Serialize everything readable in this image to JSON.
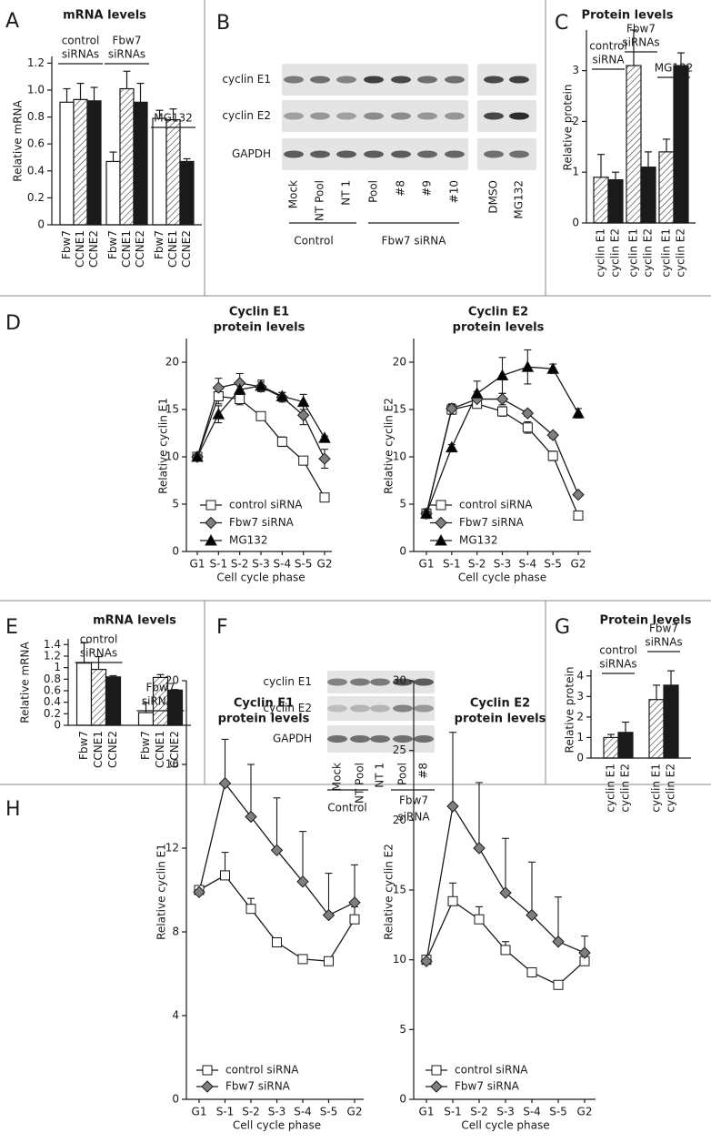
{
  "chart_data": [
    {
      "panel": "A",
      "type": "bar",
      "title": "mRNA levels",
      "ylabel": "Relative mRNA",
      "ylim": [
        0,
        1.25
      ],
      "yticks": [
        0,
        0.2,
        0.4,
        0.6,
        0.8,
        {
          "value": 1,
          "label": "1.0"
        },
        1.2
      ],
      "patterns": [
        "open",
        "hatched",
        "solid"
      ],
      "groups": [
        {
          "label": [
            "control",
            "siRNAs"
          ],
          "categories": [
            "Fbw7",
            "CCNE1",
            "CCNE2"
          ],
          "values": [
            0.91,
            0.93,
            0.92
          ],
          "errors": [
            0.1,
            0.12,
            0.1
          ]
        },
        {
          "label": [
            "Fbw7",
            "siRNAs"
          ],
          "categories": [
            "Fbw7",
            "CCNE1",
            "CCNE2"
          ],
          "values": [
            0.47,
            1.01,
            0.91
          ],
          "errors": [
            0.07,
            0.13,
            0.14
          ]
        },
        {
          "label": [
            "MG132"
          ],
          "categories": [
            "Fbw7",
            "CCNE1",
            "CCNE2"
          ],
          "values": [
            0.79,
            0.78,
            0.47
          ],
          "errors": [
            0.06,
            0.08,
            0.02
          ]
        }
      ]
    },
    {
      "panel": "B",
      "type": "blot",
      "rows": [
        "cyclin E1",
        "cyclin E2",
        "GAPDH"
      ],
      "lanes": [
        "Mock",
        "NT Pool",
        "NT 1",
        "Pool",
        "#8",
        "#9",
        "#10",
        "DMSO",
        "MG132"
      ],
      "group_labels": [
        [
          "Control"
        ],
        [
          "Fbw7 siRNA"
        ]
      ]
    },
    {
      "panel": "C",
      "type": "bar",
      "title": "Protein levels",
      "ylabel": "Relative protein",
      "ylim": [
        0,
        3.8
      ],
      "yticks": [
        0,
        1,
        2,
        3
      ],
      "patterns": [
        "hatched",
        "solid"
      ],
      "groups": [
        {
          "label": [
            "control",
            "siRNA"
          ],
          "categories": [
            "cyclin E1",
            "cyclin E2"
          ],
          "values": [
            0.9,
            0.85
          ],
          "errors": [
            0.45,
            0.15
          ]
        },
        {
          "label": [
            "Fbw7",
            "siRNAs"
          ],
          "categories": [
            "cyclin E1",
            "cyclin E2"
          ],
          "values": [
            3.1,
            1.1
          ],
          "errors": [
            0.7,
            0.3
          ]
        },
        {
          "label": [
            "MG132"
          ],
          "categories": [
            "cyclin E1",
            "cyclin E2"
          ],
          "values": [
            1.4,
            3.1
          ],
          "errors": [
            0.25,
            0.25
          ]
        }
      ]
    },
    {
      "panel": "D",
      "type": "line",
      "title": [
        "Cyclin E1",
        "protein levels"
      ],
      "xlabel": "Cell cycle phase",
      "ylabel": "Relative cyclin E1",
      "categories": [
        "G1",
        "S-1",
        "S-2",
        "S-3",
        "S-4",
        "S-5",
        "G2"
      ],
      "ylim": [
        0,
        22.5
      ],
      "yticks": [
        0,
        5,
        10,
        15,
        20
      ],
      "error_bars": "both",
      "series": [
        {
          "name": "control siRNA",
          "marker": "square",
          "color": "#ffffff",
          "values": [
            10,
            16.4,
            16.1,
            14.3,
            11.6,
            9.6,
            5.7
          ],
          "errors": [
            0,
            0.8,
            0.6,
            0.4,
            0.5,
            0.4,
            0.3
          ]
        },
        {
          "name": "Fbw7 siRNA",
          "marker": "diamond",
          "color": "#7f7f7f",
          "values": [
            10,
            17.3,
            17.8,
            17.4,
            16.3,
            14.4,
            9.8
          ],
          "errors": [
            0,
            1,
            1,
            0.5,
            0.5,
            1,
            1
          ]
        },
        {
          "name": "MG132",
          "marker": "triangle",
          "color": "#000000",
          "values": [
            10,
            14.5,
            17.1,
            17.5,
            16.4,
            15.8,
            12
          ],
          "errors": [
            0,
            0.9,
            0.9,
            0.6,
            0.4,
            0.8,
            0.2
          ]
        }
      ]
    },
    {
      "type": "line",
      "title": [
        "Cyclin E2",
        "protein levels"
      ],
      "xlabel": "Cell cycle phase",
      "ylabel": "Relative cyclin E2",
      "categories": [
        "G1",
        "S-1",
        "S-2",
        "S-3",
        "S-4",
        "S-5",
        "G2"
      ],
      "ylim": [
        0,
        22.5
      ],
      "yticks": [
        0,
        5,
        10,
        15,
        20
      ],
      "error_bars": "both",
      "series": [
        {
          "name": "control siRNA",
          "marker": "square",
          "color": "#ffffff",
          "values": [
            4,
            15,
            15.6,
            14.8,
            13.1,
            10.1,
            3.8
          ],
          "errors": [
            0,
            0.5,
            0.4,
            0.5,
            0.6,
            0.5,
            0.3
          ]
        },
        {
          "name": "Fbw7 siRNA",
          "marker": "diamond",
          "color": "#7f7f7f",
          "values": [
            4,
            15.1,
            16.1,
            16.1,
            14.6,
            12.3,
            6
          ],
          "errors": [
            0.5,
            0.5,
            0.8,
            0.6,
            0.3,
            0.3,
            0.2
          ]
        },
        {
          "name": "MG132",
          "marker": "triangle",
          "color": "#000000",
          "values": [
            4,
            11,
            16.7,
            18.6,
            19.5,
            19.3,
            14.6
          ],
          "errors": [
            0.5,
            0.3,
            1.3,
            1.9,
            1.8,
            0.5,
            0.5
          ]
        }
      ]
    },
    {
      "panel": "E",
      "type": "bar",
      "title": "mRNA levels",
      "ylabel": "Relative mRNA",
      "ylim": [
        0,
        1.5
      ],
      "yticks": [
        0,
        0.2,
        0.4,
        0.6,
        0.8,
        1,
        1.2,
        1.4
      ],
      "patterns": [
        "open",
        "hatched",
        "solid"
      ],
      "groups": [
        {
          "label": [
            "control",
            "siRNAs"
          ],
          "categories": [
            "Fbw7",
            "CCNE1",
            "CCNE2"
          ],
          "values": [
            1.08,
            0.97,
            0.84
          ],
          "errors": [
            0.35,
            0.22,
            0.02
          ]
        },
        {
          "label": [
            "Fbw7",
            "siRNAs"
          ],
          "categories": [
            "Fbw7",
            "CCNE1",
            "CCNE2"
          ],
          "values": [
            0.22,
            0.83,
            0.61
          ],
          "errors": [
            0.17,
            0.05,
            0.01
          ]
        }
      ]
    },
    {
      "panel": "F",
      "type": "blot",
      "rows": [
        "cyclin E1",
        "cyclin E2",
        "GAPDH"
      ],
      "lanes": [
        "Mock",
        "NT Pool",
        "NT 1",
        "Pool",
        "#8"
      ],
      "group_labels": [
        [
          "Control"
        ],
        [
          "Fbw7",
          "siRNA"
        ]
      ]
    },
    {
      "panel": "G",
      "type": "bar",
      "title": "Protein levels",
      "ylabel": "Relative protein",
      "ylim": [
        0,
        4.3
      ],
      "yticks": [
        0,
        1,
        2,
        3,
        4
      ],
      "patterns": [
        "hatched",
        "solid"
      ],
      "groups": [
        {
          "label": [
            "control",
            "siRNAs"
          ],
          "categories": [
            "cyclin E1",
            "cyclin E2"
          ],
          "values": [
            1,
            1.25
          ],
          "errors": [
            0.15,
            0.5
          ]
        },
        {
          "label": [
            "Fbw7",
            "siRNAs"
          ],
          "categories": [
            "cyclin E1",
            "cyclin E2"
          ],
          "values": [
            2.85,
            3.55
          ],
          "errors": [
            0.7,
            0.7
          ]
        }
      ]
    },
    {
      "panel": "H",
      "type": "line",
      "title": [
        "Cyclin E1",
        "protein levels"
      ],
      "xlabel": "Cell cycle phase",
      "ylabel": "Relative cyclin E1",
      "categories": [
        "G1",
        "S-1",
        "S-2",
        "S-3",
        "S-4",
        "S-5",
        "G2"
      ],
      "ylim": [
        0,
        20
      ],
      "yticks": [
        0,
        4,
        8,
        12,
        16,
        20
      ],
      "error_bars": "upper",
      "series": [
        {
          "name": "control siRNA",
          "marker": "square",
          "color": "#ffffff",
          "values": [
            10,
            10.7,
            9.1,
            7.5,
            6.7,
            6.6,
            8.6
          ],
          "errors": [
            0,
            1.1,
            0.5,
            0.2,
            0.2,
            0.2,
            0.6
          ]
        },
        {
          "name": "Fbw7 siRNA",
          "marker": "diamond",
          "color": "#7f7f7f",
          "values": [
            9.9,
            15.1,
            13.5,
            11.9,
            10.4,
            8.8,
            9.4
          ],
          "errors": [
            0,
            2.1,
            2.5,
            2.5,
            2.4,
            2,
            1.8
          ]
        }
      ]
    },
    {
      "type": "line",
      "title": [
        "Cyclin E2",
        "protein levels"
      ],
      "xlabel": "Cell cycle phase",
      "ylabel": "Relative cyclin E2",
      "categories": [
        "G1",
        "S-1",
        "S-2",
        "S-3",
        "S-4",
        "S-5",
        "G2"
      ],
      "ylim": [
        0,
        30
      ],
      "yticks": [
        0,
        5,
        10,
        15,
        20,
        25,
        30
      ],
      "error_bars": "upper",
      "series": [
        {
          "name": "control siRNA",
          "marker": "square",
          "color": "#ffffff",
          "values": [
            10,
            14.2,
            12.9,
            10.7,
            9.1,
            8.2,
            9.9
          ],
          "errors": [
            0,
            1.3,
            0.9,
            0.6,
            0.3,
            0.3,
            0.5
          ]
        },
        {
          "name": "Fbw7 siRNA",
          "marker": "diamond",
          "color": "#7f7f7f",
          "values": [
            9.9,
            21,
            18,
            14.8,
            13.2,
            11.3,
            10.5
          ],
          "errors": [
            0,
            5.3,
            4.7,
            3.9,
            3.8,
            3.2,
            1.2
          ]
        }
      ]
    }
  ]
}
